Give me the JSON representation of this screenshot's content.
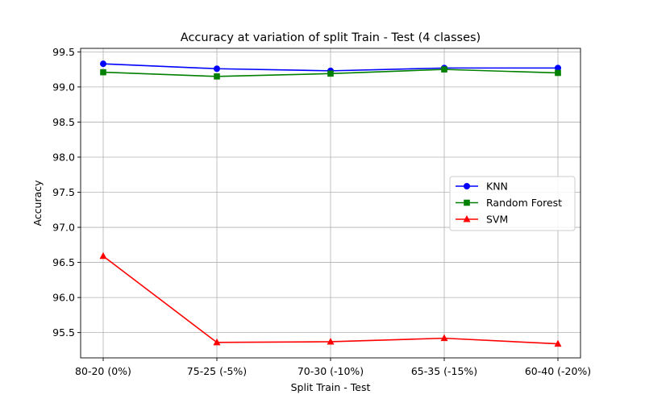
{
  "chart_data": {
    "type": "line",
    "title": "Accuracy at variation of split Train - Test (4 classes)",
    "xlabel": "Split Train - Test",
    "ylabel": "Accuracy",
    "categories": [
      "80-20 (0%)",
      "75-25 (-5%)",
      "70-30 (-10%)",
      "65-35 (-15%)",
      "60-40 (-20%)"
    ],
    "ylim": [
      95.14,
      99.55
    ],
    "yticks": [
      95.5,
      96.0,
      96.5,
      97.0,
      97.5,
      98.0,
      98.5,
      99.0,
      99.5
    ],
    "grid": true,
    "legend_position": "center-right",
    "series": [
      {
        "name": "KNN",
        "color": "#0000ff",
        "marker": "circle",
        "values": [
          99.33,
          99.26,
          99.23,
          99.27,
          99.27
        ]
      },
      {
        "name": "Random Forest",
        "color": "#008000",
        "marker": "square",
        "values": [
          99.21,
          99.15,
          99.19,
          99.25,
          99.2
        ]
      },
      {
        "name": "SVM",
        "color": "#ff0000",
        "marker": "triangle",
        "values": [
          96.59,
          95.36,
          95.37,
          95.42,
          95.34
        ]
      }
    ]
  }
}
